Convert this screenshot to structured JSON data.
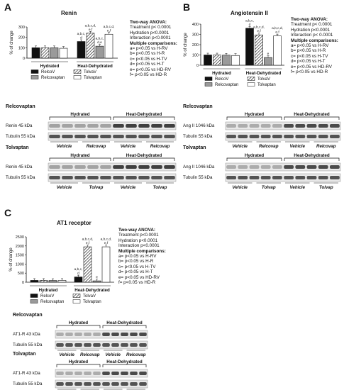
{
  "panels": [
    {
      "letter": "A",
      "title": "Renin",
      "stats": [
        "Two-way  ANOVA:",
        "Treatment p< 0.0001",
        "Hydration p<0.0001",
        "Interaction p<0.0001",
        "Multiple comparisons:",
        "a= p<0.05 vs H-RV",
        "b= p<0.05 vs H-R",
        "c= p<0.05 vs H-TV",
        "d= p<0.05 vs H-T",
        "e= p<0.05 vs HD-RV",
        "f= p<0.05 vs HD-R"
      ],
      "blot1_label": "Relcovaptan",
      "blot1_bands": [
        "Renin 45 kDa",
        "Tubulin 55 kDa"
      ],
      "blot1_lanes": [
        "Vehicle",
        "Relcovap",
        "Vehicle",
        "Relcovap"
      ],
      "blot2_label": "Tolvaptan",
      "blot2_bands": [
        "Renin 45 kDa",
        "Tubulin 55 kDa"
      ],
      "blot2_lanes": [
        "Vehicle",
        "Tolvap",
        "Vehicle",
        "Tolvap"
      ]
    },
    {
      "letter": "B",
      "title": "Angiotensin  II",
      "stats": [
        "Two-way  ANOVA:",
        "Treatment p< 0.0001",
        "Hydration p<0.0001",
        "Interaction p< 0.0001",
        "Multiple comparisons:",
        "a= p<0.05 vs H-RV",
        "b= p<0.05 vs H-R",
        "c= p<0.05 vs H-TV",
        "d= p<0.05 vs H-T",
        "e= p<0.05 vs HD-RV",
        "f= p<0.05 vs HD-R"
      ],
      "blot1_label": "Relcovaptan",
      "blot1_bands": [
        "Ang II 1046 kDa",
        "Tubulin 55 kDa"
      ],
      "blot1_lanes": [
        "Vehicle",
        "Relcovap",
        "Vehicle",
        "Relcovap"
      ],
      "blot2_label": "Tolvaptan",
      "blot2_bands": [
        "Ang II 1046 kDa",
        "Tubulin 55 kDa"
      ],
      "blot2_lanes": [
        "Vehicle",
        "Tolvap",
        "Vehicle",
        "Tolvap"
      ]
    },
    {
      "letter": "C",
      "title": "AT1 receptor",
      "stats": [
        "Two-way  ANOVA:",
        "Treatment p<0.0001",
        "Hydration p<0.0001",
        "Interaction p<0.0001",
        "Multiple comparisons:",
        "a= p<0.05 vs H-RV",
        "b= p<0.05 vs H-R",
        "c= p<0.05 vs H-TV",
        "d= p<0.05 vs H-T",
        "e= p<0.05 vs HD-RV",
        "f= p<0.05 vs HD-R"
      ],
      "blot1_label": "Relcovaptan",
      "blot1_bands": [
        "AT1-R 43 kDa",
        "Tubulin 55 kDa"
      ],
      "blot1_lanes": [
        "Vehicle",
        "Relcovap",
        "Vehicle",
        "Relcovap"
      ],
      "blot2_label": "Tolvaptan",
      "blot2_bands": [
        "AT1-R 43 kDa",
        "Tubulin 55 kDa"
      ],
      "blot2_lanes": [
        "Vehicle",
        "Tolvap",
        "Vehicle",
        "Tolvap"
      ]
    }
  ],
  "group_labels": [
    "Hydrated",
    "Heat-Dehydrated"
  ],
  "chart_data": [
    {
      "type": "bar",
      "title": "Renin",
      "ylabel": "% of change",
      "categories": [
        "Hydrated",
        "Heat-Dehydrated"
      ],
      "yticks": [
        0,
        100,
        200,
        300
      ],
      "ylim": [
        0,
        300
      ],
      "legend": "bottom",
      "series": [
        {
          "name": "RelcoV",
          "values": [
            100,
            160
          ]
        },
        {
          "name": "TolvaV",
          "values": [
            100,
            240
          ]
        },
        {
          "name": "Relcovaptan",
          "values": [
            100,
            115
          ]
        },
        {
          "name": "Tolvaptan",
          "values": [
            95,
            230
          ]
        }
      ],
      "annotations": [
        {
          "series": "RelcoV",
          "category": "Heat-Dehydrated",
          "text": "a,b,c,d"
        },
        {
          "series": "TolvaV",
          "category": "Heat-Dehydrated",
          "text": "a,b,c,d,e,f"
        },
        {
          "series": "Relcovaptan",
          "category": "Heat-Dehydrated",
          "text": "a,b,c,d,e"
        },
        {
          "series": "Tolvaptan",
          "category": "Heat-Dehydrated",
          "text": "a,b,c,d,e,f"
        }
      ]
    },
    {
      "type": "bar",
      "title": "Angiotensin  II",
      "ylabel": "% of change",
      "categories": [
        "Hydrated",
        "Heat-Dehydrated"
      ],
      "yticks": [
        0,
        100,
        200,
        300,
        400
      ],
      "ylim": [
        0,
        400
      ],
      "legend": "bottom",
      "series": [
        {
          "name": "RelcoV",
          "values": [
            100,
            360
          ]
        },
        {
          "name": "TolvaV",
          "values": [
            100,
            295
          ]
        },
        {
          "name": "Relcovaptan",
          "values": [
            98,
            75
          ]
        },
        {
          "name": "Tolvaptan",
          "values": [
            95,
            285
          ]
        }
      ],
      "annotations": [
        {
          "series": "RelcoV",
          "category": "Heat-Dehydrated",
          "text": "a,b,c,d"
        },
        {
          "series": "TolvaV",
          "category": "Heat-Dehydrated",
          "text": "a,b,c,d,e,f"
        },
        {
          "series": "Relcovaptan",
          "category": "Heat-Dehydrated",
          "text": "e"
        },
        {
          "series": "Tolvaptan",
          "category": "Heat-Dehydrated",
          "text": "a,b,c,d,e,f"
        }
      ]
    },
    {
      "type": "bar",
      "title": "AT1 receptor",
      "ylabel": "% of change",
      "categories": [
        "Hydrated",
        "Heat-Dehydrated"
      ],
      "yticks": [
        0,
        500,
        1000,
        1500,
        2000,
        2500
      ],
      "ylim": [
        0,
        2500
      ],
      "legend": "bottom",
      "series": [
        {
          "name": "RelcoV",
          "values": [
            100,
            290
          ]
        },
        {
          "name": "TolvaV",
          "values": [
            100,
            1950
          ]
        },
        {
          "name": "Relcovaptan",
          "values": [
            95,
            75
          ]
        },
        {
          "name": "Tolvaptan",
          "values": [
            100,
            1950
          ]
        }
      ],
      "annotations": [
        {
          "series": "RelcoV",
          "category": "Heat-Dehydrated",
          "text": "a,b,c,d"
        },
        {
          "series": "TolvaV",
          "category": "Heat-Dehydrated",
          "text": "a,b,c,d,e,f"
        },
        {
          "series": "Relcovaptan",
          "category": "Heat-Dehydrated",
          "text": "e"
        },
        {
          "series": "Tolvaptan",
          "category": "Heat-Dehydrated",
          "text": "a,b,c,d,e,f"
        }
      ]
    }
  ]
}
